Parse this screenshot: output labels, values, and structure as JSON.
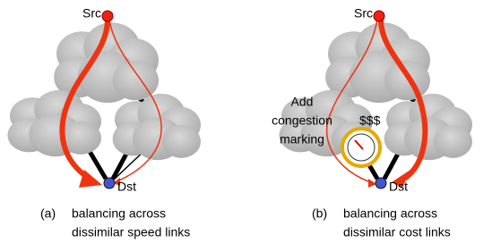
{
  "panels": [
    {
      "src": "Src",
      "dst": "Dst",
      "label": "(a)",
      "caption": [
        "balancing across",
        "dissimilar speed links"
      ]
    },
    {
      "src": "Src",
      "dst": "Dst",
      "label": "(b)",
      "caption": [
        "balancing across",
        "dissimilar cost links"
      ],
      "price": "$$$",
      "annotation": [
        "Add",
        "congestion",
        "marking"
      ]
    }
  ]
}
